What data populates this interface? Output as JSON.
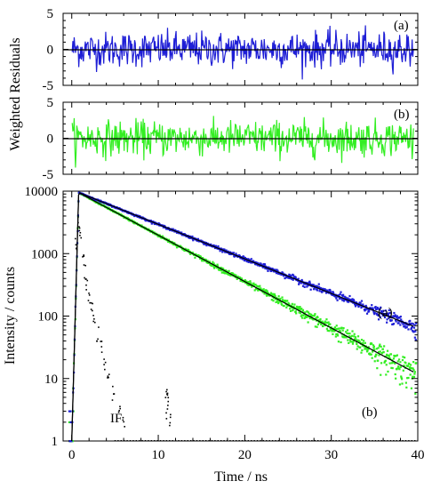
{
  "chart_data": [
    {
      "type": "line",
      "panel": "residuals-a",
      "ylabel": "Weighted Residuals",
      "annotation": "(a)",
      "xlim": [
        -1,
        40
      ],
      "ylim": [
        -5,
        5
      ],
      "yticks": [
        "5",
        "0",
        "-5"
      ],
      "ytick_values": [
        5,
        0,
        -5
      ],
      "series": [
        {
          "color": "#1f1fd6",
          "amplitude": 1.2,
          "range": [
            -4.3,
            3.4
          ]
        }
      ],
      "zero_line": 0
    },
    {
      "type": "line",
      "panel": "residuals-b",
      "annotation": "(b)",
      "xlim": [
        -1,
        40
      ],
      "ylim": [
        -5,
        5
      ],
      "yticks": [
        "5",
        "0",
        "-5"
      ],
      "ytick_values": [
        5,
        0,
        -5
      ],
      "series": [
        {
          "color": "#33ee22",
          "amplitude": 1.2,
          "range": [
            -4.8,
            3.1
          ]
        }
      ],
      "zero_line": 0
    },
    {
      "type": "scatter",
      "panel": "decay",
      "xlabel": "Time / ns",
      "ylabel": "Intensity / counts",
      "log_y": true,
      "xlim": [
        -1,
        40
      ],
      "ylim": [
        1,
        10000
      ],
      "xticks": [
        "0",
        "10",
        "20",
        "30",
        "40"
      ],
      "xtick_values": [
        0,
        10,
        20,
        30,
        40
      ],
      "yticks": [
        "10000",
        "1000",
        "100",
        "10",
        "1"
      ],
      "ytick_values": [
        10000,
        1000,
        100,
        10,
        1
      ],
      "series": [
        {
          "label": "(a)",
          "color": "#1f1fd6",
          "peak_time": 0.8,
          "peak": 9500,
          "lifetime": 7.85,
          "fit_color": "#000000"
        },
        {
          "label": "(b)",
          "color": "#33ee22",
          "peak_time": 0.8,
          "peak": 9500,
          "lifetime": 5.85,
          "fit_color": "#000000"
        },
        {
          "label": "IF",
          "color": "#000000",
          "points": [
            [
              0.5,
              1500
            ],
            [
              0.8,
              3000
            ],
            [
              1.0,
              2000
            ],
            [
              1.3,
              900
            ],
            [
              1.5,
              500
            ],
            [
              1.7,
              300
            ],
            [
              2.0,
              180
            ],
            [
              2.3,
              130
            ],
            [
              2.6,
              80
            ],
            [
              3.0,
              50
            ],
            [
              3.4,
              30
            ],
            [
              3.8,
              18
            ],
            [
              4.2,
              10
            ],
            [
              4.8,
              6
            ],
            [
              5.5,
              3
            ],
            [
              6.0,
              2
            ],
            [
              10.9,
              6
            ],
            [
              11.1,
              5
            ],
            [
              11.0,
              3
            ],
            [
              11.3,
              2
            ]
          ]
        }
      ]
    }
  ]
}
